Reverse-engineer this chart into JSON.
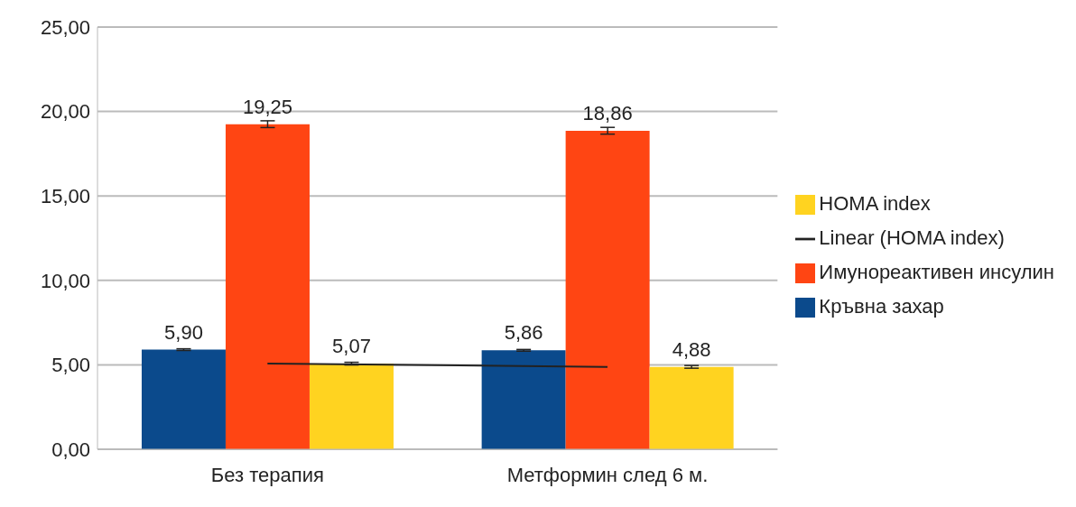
{
  "chart_data": {
    "type": "bar",
    "categories": [
      "Без терапия",
      "Метформин след 6 м."
    ],
    "series": [
      {
        "name": "Кръвна захар",
        "color": "#0b4a8c",
        "values": [
          5.9,
          5.86
        ],
        "errors": [
          0.05,
          0.05
        ],
        "value_labels": [
          "5,90",
          "5,86"
        ]
      },
      {
        "name": "Имунореактивен инсулин",
        "color": "#ff4513",
        "values": [
          19.25,
          18.86
        ],
        "errors": [
          0.2,
          0.2
        ],
        "value_labels": [
          "19,25",
          "18,86"
        ]
      },
      {
        "name": "HOMA index",
        "color": "#ffd320",
        "values": [
          5.07,
          4.88
        ],
        "errors": [
          0.08,
          0.08
        ],
        "value_labels": [
          "5,07",
          "4,88"
        ]
      },
      {
        "name": "Linear (HOMA index)",
        "type": "line",
        "color": "#222222",
        "x": [
          "Без терапия",
          "Метформин след 6 м."
        ],
        "values": [
          5.07,
          4.88
        ]
      }
    ],
    "ylim": [
      0,
      25
    ],
    "yticks": [
      {
        "value": 0,
        "label": "0,00"
      },
      {
        "value": 5,
        "label": "5,00"
      },
      {
        "value": 10,
        "label": "10,00"
      },
      {
        "value": 15,
        "label": "15,00"
      },
      {
        "value": 20,
        "label": "20,00"
      },
      {
        "value": 25,
        "label": "25,00"
      }
    ],
    "grid": "y",
    "legend": "right",
    "marker": "none"
  }
}
